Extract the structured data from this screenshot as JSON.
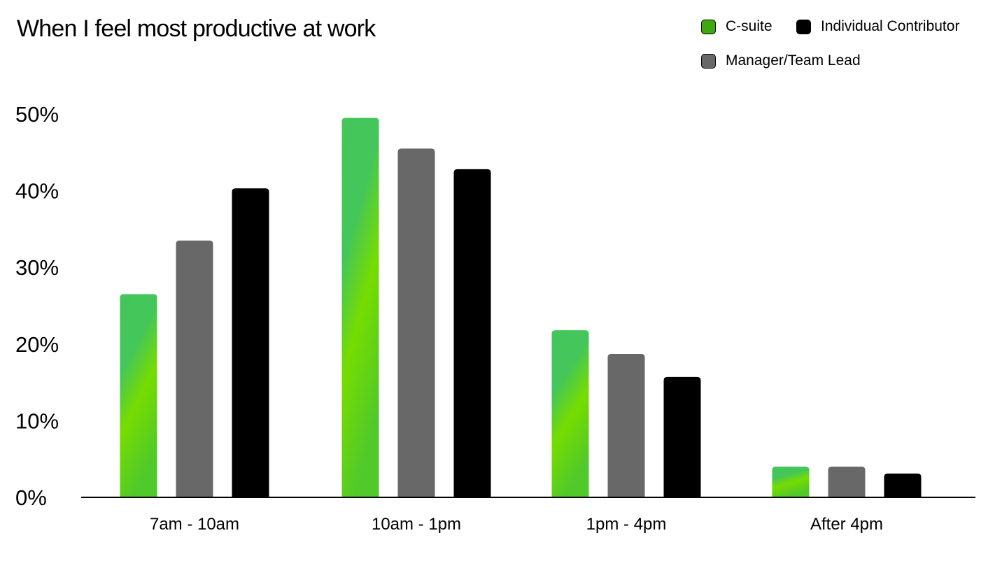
{
  "chart_data": {
    "type": "bar",
    "title": "When I feel most productive at work",
    "categories": [
      "7am - 10am",
      "10am - 1pm",
      "1pm - 4pm",
      "After 4pm"
    ],
    "series": [
      {
        "name": "C-suite",
        "color": "#3fa80e",
        "values": [
          26.5,
          49.5,
          21.8,
          4.0
        ]
      },
      {
        "name": "Manager/Team Lead",
        "color": "#686868",
        "values": [
          33.5,
          45.5,
          18.7,
          4.0
        ]
      },
      {
        "name": "Individual Contributor",
        "color": "#000000",
        "values": [
          40.3,
          42.8,
          15.7,
          3.1
        ]
      }
    ],
    "ylim": [
      0,
      50
    ],
    "yticks": [
      "0%",
      "10%",
      "20%",
      "30%",
      "40%",
      "50%"
    ],
    "xlabel": "",
    "ylabel": "",
    "grid": false,
    "legend": "top-right"
  }
}
